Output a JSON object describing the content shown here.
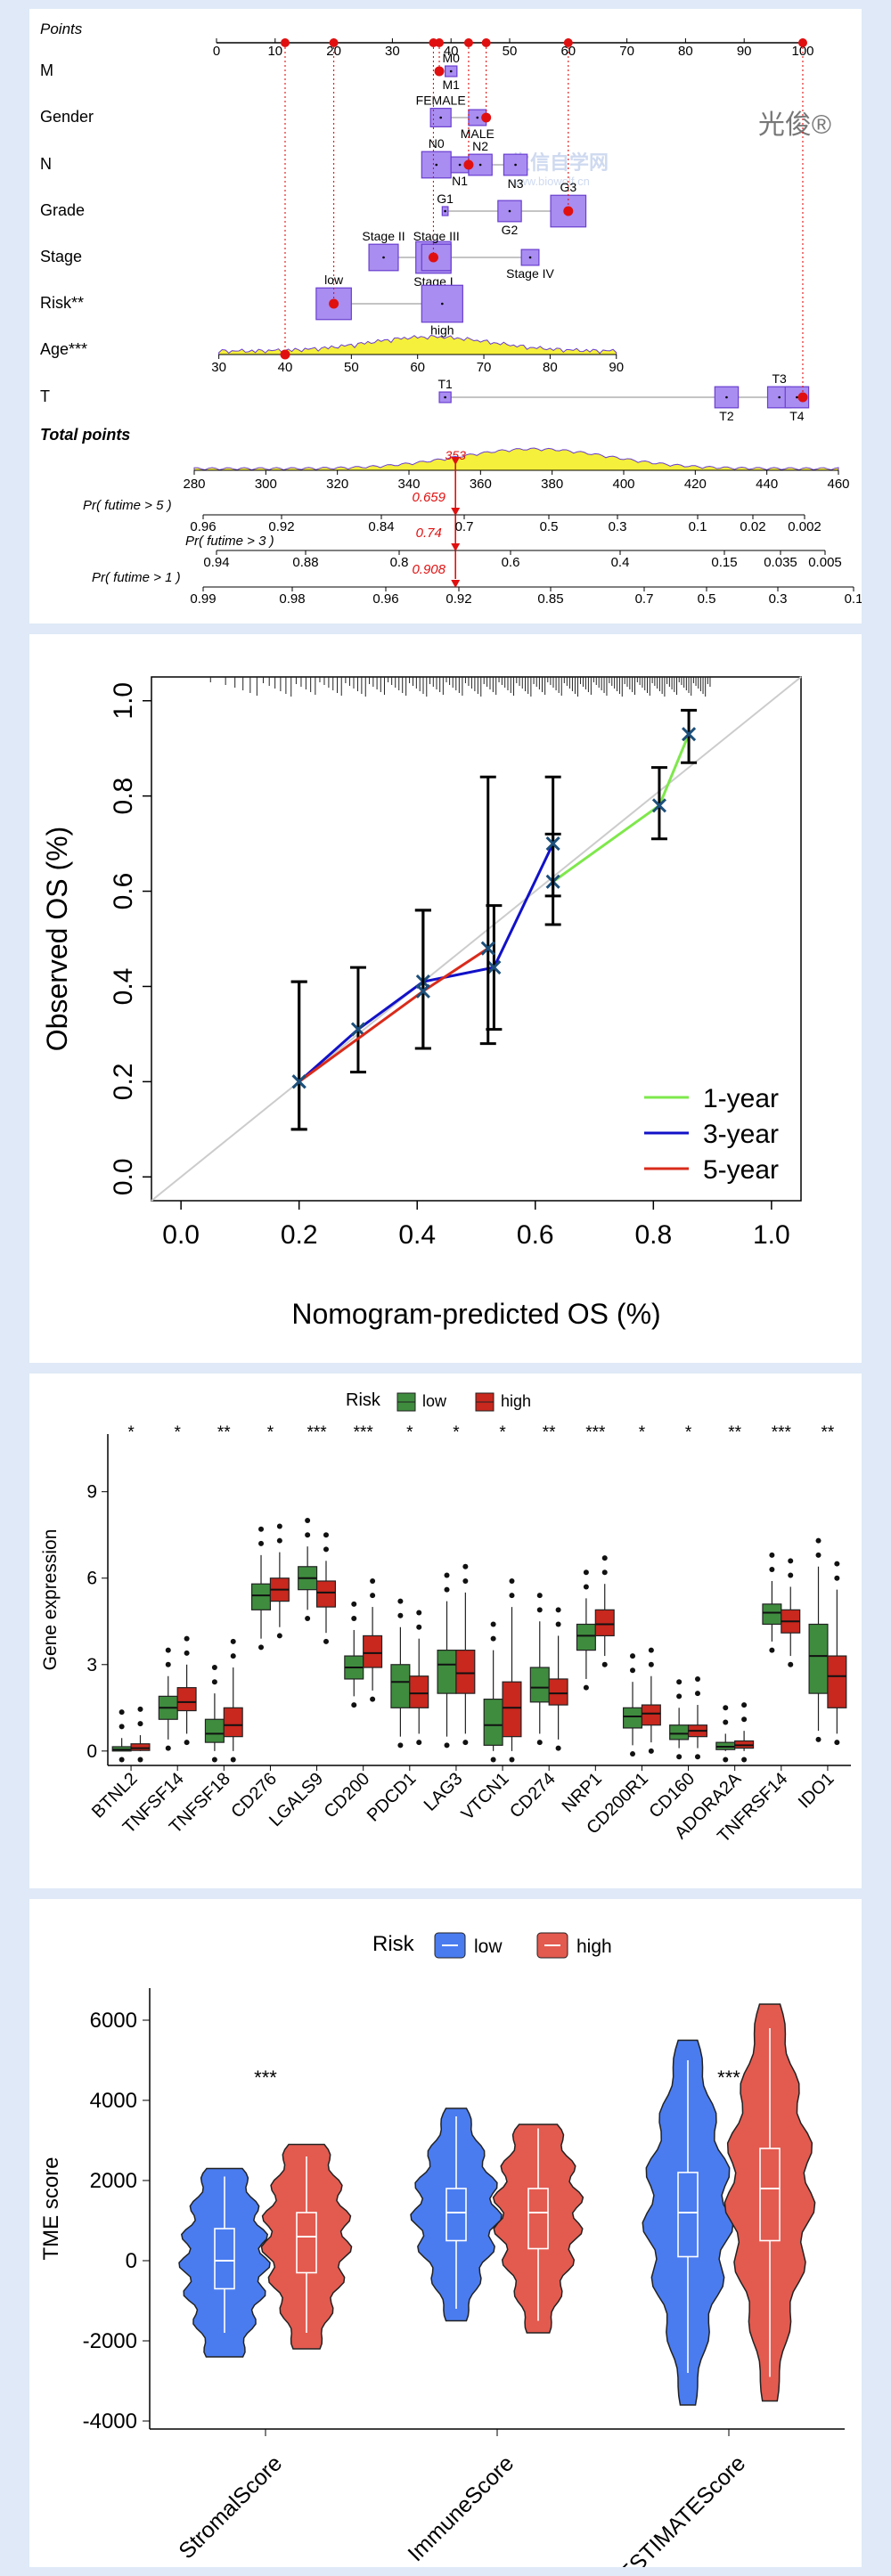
{
  "watermark": {
    "logo": "光俊®",
    "site": "生信自学网",
    "url": "www.biowolf.cn"
  },
  "nomogram": {
    "points_label": "Points",
    "points_ticks": [
      0,
      10,
      20,
      30,
      40,
      50,
      60,
      70,
      80,
      90,
      100
    ],
    "variables": [
      {
        "name": "M",
        "levels": [
          {
            "label": "M0",
            "box": [
              39,
              41
            ]
          },
          {
            "label": "M1",
            "box": [
              39,
              41
            ]
          }
        ],
        "point": 38
      },
      {
        "name": "Gender",
        "levels": [
          {
            "label": "FEMALE",
            "box": [
              36.5,
              40
            ]
          },
          {
            "label": "MALE",
            "box": [
              43,
              46
            ]
          }
        ],
        "point": 46
      },
      {
        "name": "N",
        "levels": [
          {
            "label": "N0",
            "box": [
              35,
              40
            ]
          },
          {
            "label": "N1",
            "box": [
              40,
              43
            ]
          },
          {
            "label": "N2",
            "box": [
              43,
              47
            ]
          },
          {
            "label": "N3",
            "box": [
              49,
              53
            ]
          }
        ],
        "point": 43
      },
      {
        "name": "Grade",
        "levels": [
          {
            "label": "G1",
            "box": [
              38.5,
              39.5
            ]
          },
          {
            "label": "G2",
            "box": [
              48,
              52
            ]
          },
          {
            "label": "G3",
            "box": [
              57,
              63
            ]
          }
        ],
        "point": 60
      },
      {
        "name": "Stage",
        "levels": [
          {
            "label": "Stage II",
            "box": [
              26,
              31
            ]
          },
          {
            "label": "Stage I",
            "box": [
              34,
              40
            ]
          },
          {
            "label": "Stage III",
            "box": [
              35,
              40
            ]
          },
          {
            "label": "Stage IV",
            "box": [
              52,
              55
            ]
          }
        ],
        "point": 37
      },
      {
        "name": "Risk**",
        "levels": [
          {
            "label": "low",
            "box": [
              17,
              23
            ]
          },
          {
            "label": "high",
            "box": [
              35,
              42
            ]
          }
        ],
        "point": 20
      },
      {
        "name": "T",
        "levels": [
          {
            "label": "T1",
            "box": [
              38,
              40
            ]
          },
          {
            "label": "T2",
            "box": [
              85,
              89
            ]
          },
          {
            "label": "T3",
            "box": [
              94,
              98
            ]
          },
          {
            "label": "T4",
            "box": [
              97,
              101
            ]
          }
        ],
        "point": 100
      }
    ],
    "age": {
      "name": "Age***",
      "ticks": [
        30,
        40,
        50,
        60,
        70,
        80,
        90
      ],
      "point": 40
    },
    "total": {
      "label": "Total points",
      "ticks": [
        280,
        300,
        320,
        340,
        360,
        380,
        400,
        420,
        440,
        460
      ],
      "value": "353"
    },
    "probs": [
      {
        "label": "Pr( futime > 5 )",
        "ticks": [
          "0.96",
          "0.92",
          "0.84",
          "0.7",
          "0.5",
          "0.3",
          "0.1",
          "0.02",
          "0.002"
        ],
        "value": "0.659"
      },
      {
        "label": "Pr( futime > 3 )",
        "ticks": [
          "0.94",
          "0.88",
          "0.8",
          "0.6",
          "0.4",
          "0.15",
          "0.035",
          "0.005"
        ],
        "value": "0.74"
      },
      {
        "label": "Pr( futime > 1 )",
        "ticks": [
          "0.99",
          "0.98",
          "0.96",
          "0.92",
          "0.85",
          "0.7",
          "0.5",
          "0.3",
          "0.1"
        ],
        "value": "0.908"
      }
    ]
  },
  "chart_data": [
    {
      "type": "line",
      "xlabel": "Nomogram-predicted OS (%)",
      "ylabel": "Observed OS (%)",
      "xlim": [
        -0.05,
        1.05
      ],
      "ylim": [
        -0.05,
        1.05
      ],
      "xticks": [
        "0.0",
        "0.2",
        "0.4",
        "0.6",
        "0.8",
        "1.0"
      ],
      "yticks": [
        "0.0",
        "0.2",
        "0.4",
        "0.6",
        "0.8",
        "1.0"
      ],
      "legend": "bottom-right",
      "series": [
        {
          "name": "1-year",
          "color": "#7ee84b",
          "x": [
            0.63,
            0.81,
            0.86
          ],
          "y": [
            0.62,
            0.78,
            0.93
          ],
          "lo": [
            0.53,
            0.71,
            0.87
          ],
          "hi": [
            0.72,
            0.86,
            0.98
          ]
        },
        {
          "name": "3-year",
          "color": "#1111c8",
          "x": [
            0.2,
            0.3,
            0.41,
            0.53,
            0.63
          ],
          "y": [
            0.2,
            0.31,
            0.41,
            0.44,
            0.7
          ],
          "lo": [
            0.1,
            0.22,
            0.27,
            0.31,
            0.59
          ],
          "hi": [
            0.41,
            0.44,
            0.56,
            0.57,
            0.84
          ]
        },
        {
          "name": "5-year",
          "color": "#d92b1b",
          "x": [
            0.2,
            0.41,
            0.52
          ],
          "y": [
            0.2,
            0.39,
            0.48
          ],
          "lo": [
            0.1,
            0.27,
            0.28
          ],
          "hi": [
            0.41,
            0.56,
            0.84
          ]
        }
      ]
    },
    {
      "type": "box",
      "title": "Risk",
      "ylabel": "Gene expression",
      "ylim": [
        -0.5,
        11
      ],
      "yticks": [
        0,
        3,
        6,
        9
      ],
      "legend": "top",
      "groups": [
        {
          "name": "low",
          "color": "#3f8c3f"
        },
        {
          "name": "high",
          "color": "#c8281e"
        }
      ],
      "categories": [
        "BTNL2",
        "TNFSF14",
        "TNFSF18",
        "CD276",
        "LGALS9",
        "CD200",
        "PDCD1",
        "LAG3",
        "VTCN1",
        "CD274",
        "NRP1",
        "CD200R1",
        "CD160",
        "ADORA2A",
        "TNFRSF14",
        "IDO1"
      ],
      "significance": [
        "*",
        "*",
        "**",
        "*",
        "***",
        "***",
        "*",
        "*",
        "*",
        "**",
        "***",
        "*",
        "*",
        "**",
        "***",
        "**"
      ],
      "boxes": [
        [
          [
            0,
            0,
            0.05,
            0.15,
            0.45
          ],
          [
            0,
            0.02,
            0.1,
            0.25,
            0.55
          ]
        ],
        [
          [
            0.4,
            1.1,
            1.5,
            1.9,
            2.6
          ],
          [
            0.6,
            1.4,
            1.7,
            2.2,
            3.0
          ]
        ],
        [
          [
            0,
            0.3,
            0.6,
            1.1,
            2.0
          ],
          [
            0,
            0.5,
            0.9,
            1.5,
            2.9
          ]
        ],
        [
          [
            3.9,
            4.9,
            5.4,
            5.8,
            6.8
          ],
          [
            4.3,
            5.2,
            5.6,
            6.0,
            6.9
          ]
        ],
        [
          [
            4.9,
            5.6,
            6.0,
            6.4,
            7.1
          ],
          [
            4.1,
            5.0,
            5.5,
            5.9,
            6.6
          ]
        ],
        [
          [
            1.9,
            2.5,
            2.9,
            3.3,
            4.2
          ],
          [
            2.1,
            2.9,
            3.4,
            4.0,
            5.0
          ]
        ],
        [
          [
            0.5,
            1.5,
            2.4,
            3.0,
            4.3
          ],
          [
            0.6,
            1.5,
            2.0,
            2.6,
            3.9
          ]
        ],
        [
          [
            0.5,
            2.0,
            3.0,
            3.5,
            5.2
          ],
          [
            0.6,
            2.0,
            2.7,
            3.5,
            5.5
          ]
        ],
        [
          [
            0,
            0.2,
            0.9,
            1.8,
            3.5
          ],
          [
            0,
            0.5,
            1.5,
            2.4,
            5.0
          ]
        ],
        [
          [
            0.6,
            1.7,
            2.2,
            2.9,
            4.5
          ],
          [
            0.4,
            1.6,
            2.0,
            2.5,
            4.0
          ]
        ],
        [
          [
            2.5,
            3.5,
            4.0,
            4.4,
            5.3
          ],
          [
            3.3,
            4.0,
            4.4,
            4.9,
            5.8
          ]
        ],
        [
          [
            0.2,
            0.8,
            1.2,
            1.5,
            2.4
          ],
          [
            0.3,
            0.9,
            1.3,
            1.6,
            2.6
          ]
        ],
        [
          [
            0.1,
            0.4,
            0.6,
            0.9,
            1.5
          ],
          [
            0.1,
            0.5,
            0.7,
            0.9,
            1.6
          ]
        ],
        [
          [
            0,
            0.05,
            0.15,
            0.3,
            0.6
          ],
          [
            0,
            0.1,
            0.2,
            0.35,
            0.7
          ]
        ],
        [
          [
            3.8,
            4.4,
            4.8,
            5.1,
            5.9
          ],
          [
            3.3,
            4.1,
            4.5,
            4.9,
            5.7
          ]
        ],
        [
          [
            0.7,
            2.0,
            3.3,
            4.4,
            6.4
          ],
          [
            0.6,
            1.5,
            2.6,
            3.3,
            5.6
          ]
        ]
      ]
    },
    {
      "type": "violin",
      "title": "Risk",
      "ylabel": "TME score",
      "ylim": [
        -4200,
        6800
      ],
      "yticks": [
        -4000,
        -2000,
        0,
        2000,
        4000,
        6000
      ],
      "legend": "top",
      "groups": [
        {
          "name": "low",
          "color": "#4a7cf0"
        },
        {
          "name": "high",
          "color": "#e35a4f"
        }
      ],
      "categories": [
        "StromalScore",
        "ImmuneScore",
        "ESTIMATEScore"
      ],
      "significance": [
        "***",
        "",
        "***"
      ],
      "violins": [
        [
          {
            "min": -2400,
            "max": 2300,
            "q1": -700,
            "median": 0,
            "q3": 800,
            "wmin": -1800,
            "wmax": 2100
          },
          {
            "min": -2200,
            "max": 2900,
            "q1": -300,
            "median": 600,
            "q3": 1200,
            "wmin": -1800,
            "wmax": 2600
          }
        ],
        [
          {
            "min": -1500,
            "max": 3800,
            "q1": 500,
            "median": 1200,
            "q3": 1800,
            "wmin": -1200,
            "wmax": 3600
          },
          {
            "min": -1800,
            "max": 3400,
            "q1": 300,
            "median": 1200,
            "q3": 1800,
            "wmin": -1500,
            "wmax": 3300
          }
        ],
        [
          {
            "min": -3600,
            "max": 5500,
            "q1": 100,
            "median": 1200,
            "q3": 2200,
            "wmin": -2800,
            "wmax": 5000
          },
          {
            "min": -3500,
            "max": 6400,
            "q1": 500,
            "median": 1800,
            "q3": 2800,
            "wmin": -2900,
            "wmax": 5800
          }
        ]
      ]
    }
  ]
}
